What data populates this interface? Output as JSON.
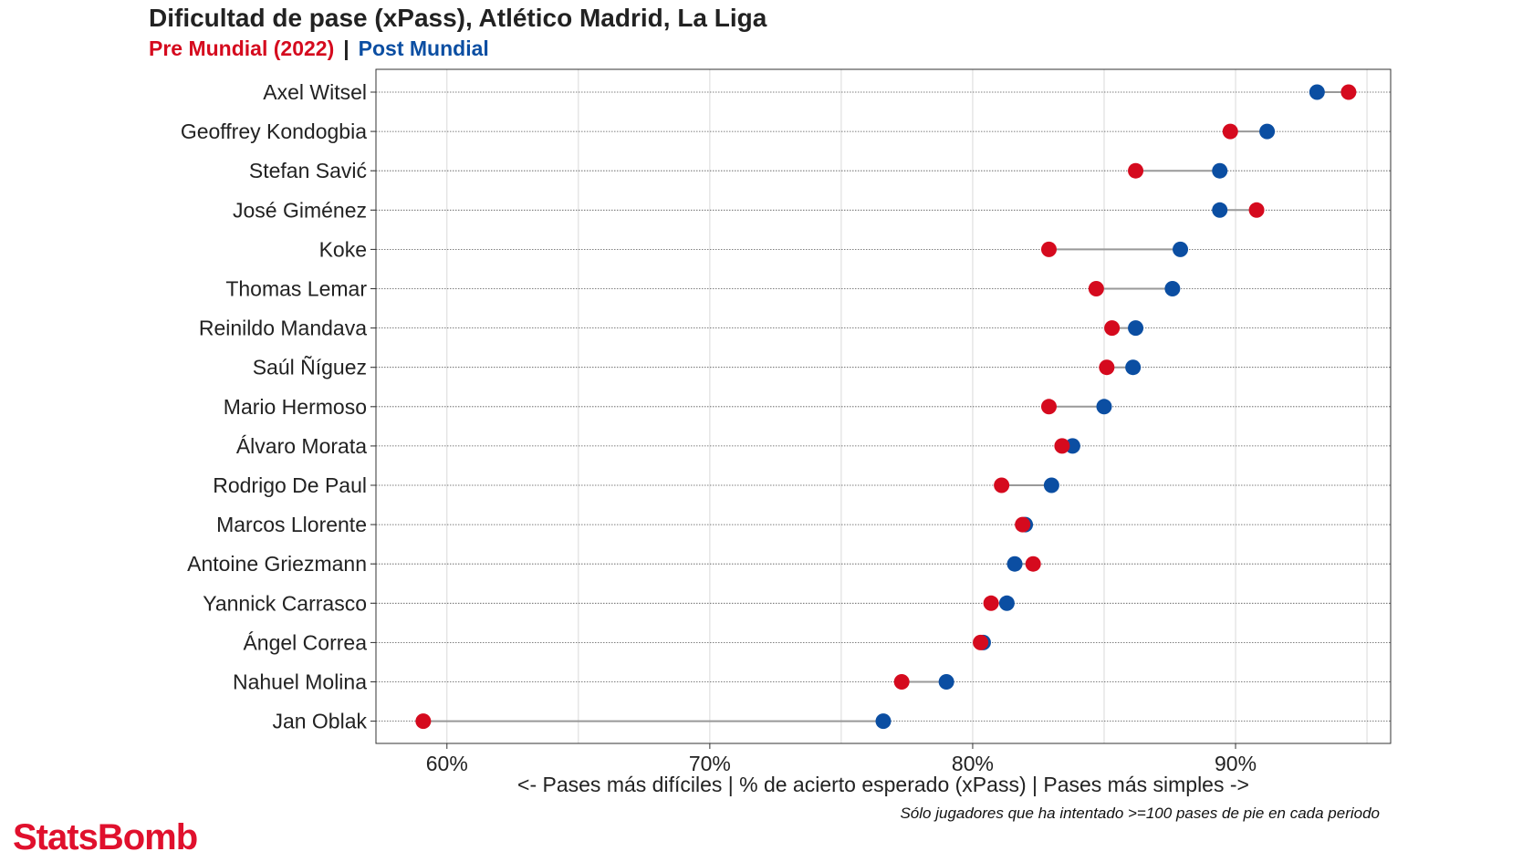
{
  "title": "Dificultad de pase (xPass), Atlético Madrid, La Liga",
  "subtitle": {
    "pre_label": "Pre Mundial (2022)",
    "separator": "|",
    "post_label": "Post Mundial"
  },
  "caption": "Sólo jugadores que ha intentado >=100 pases de pie en cada periodo",
  "brand": "StatsBomb",
  "colors": {
    "pre": "#d50a1e",
    "post": "#0b4ea2",
    "connector": "#999999",
    "grid": "#d9d9d9"
  },
  "chart_data": {
    "type": "dumbbell",
    "xlabel": "<- Pases más difíciles | % de acierto esperado (xPass) | Pases más simples ->",
    "xlim": [
      57.3,
      95.9
    ],
    "x_ticks": [
      60,
      70,
      80,
      90
    ],
    "x_tick_labels": [
      "60%",
      "70%",
      "80%",
      "90%"
    ],
    "grid": true,
    "series_names": [
      "Pre Mundial (2022)",
      "Post Mundial"
    ],
    "players": [
      {
        "name": "Axel Witsel",
        "pre": 94.3,
        "post": 93.1
      },
      {
        "name": "Geoffrey Kondogbia",
        "pre": 89.8,
        "post": 91.2
      },
      {
        "name": "Stefan Savić",
        "pre": 86.2,
        "post": 89.4
      },
      {
        "name": "José Giménez",
        "pre": 90.8,
        "post": 89.4
      },
      {
        "name": "Koke",
        "pre": 82.9,
        "post": 87.9
      },
      {
        "name": "Thomas Lemar",
        "pre": 84.7,
        "post": 87.6
      },
      {
        "name": "Reinildo Mandava",
        "pre": 85.3,
        "post": 86.2
      },
      {
        "name": "Saúl Ñíguez",
        "pre": 85.1,
        "post": 86.1
      },
      {
        "name": "Mario Hermoso",
        "pre": 82.9,
        "post": 85.0
      },
      {
        "name": "Álvaro Morata",
        "pre": 83.4,
        "post": 83.8
      },
      {
        "name": "Rodrigo De Paul",
        "pre": 81.1,
        "post": 83.0
      },
      {
        "name": "Marcos Llorente",
        "pre": 81.9,
        "post": 82.0
      },
      {
        "name": "Antoine Griezmann",
        "pre": 82.3,
        "post": 81.6
      },
      {
        "name": "Yannick Carrasco",
        "pre": 80.7,
        "post": 81.3
      },
      {
        "name": "Ángel Correa",
        "pre": 80.3,
        "post": 80.4
      },
      {
        "name": "Nahuel Molina",
        "pre": 77.3,
        "post": 79.0
      },
      {
        "name": "Jan Oblak",
        "pre": 59.1,
        "post": 76.6
      }
    ]
  }
}
